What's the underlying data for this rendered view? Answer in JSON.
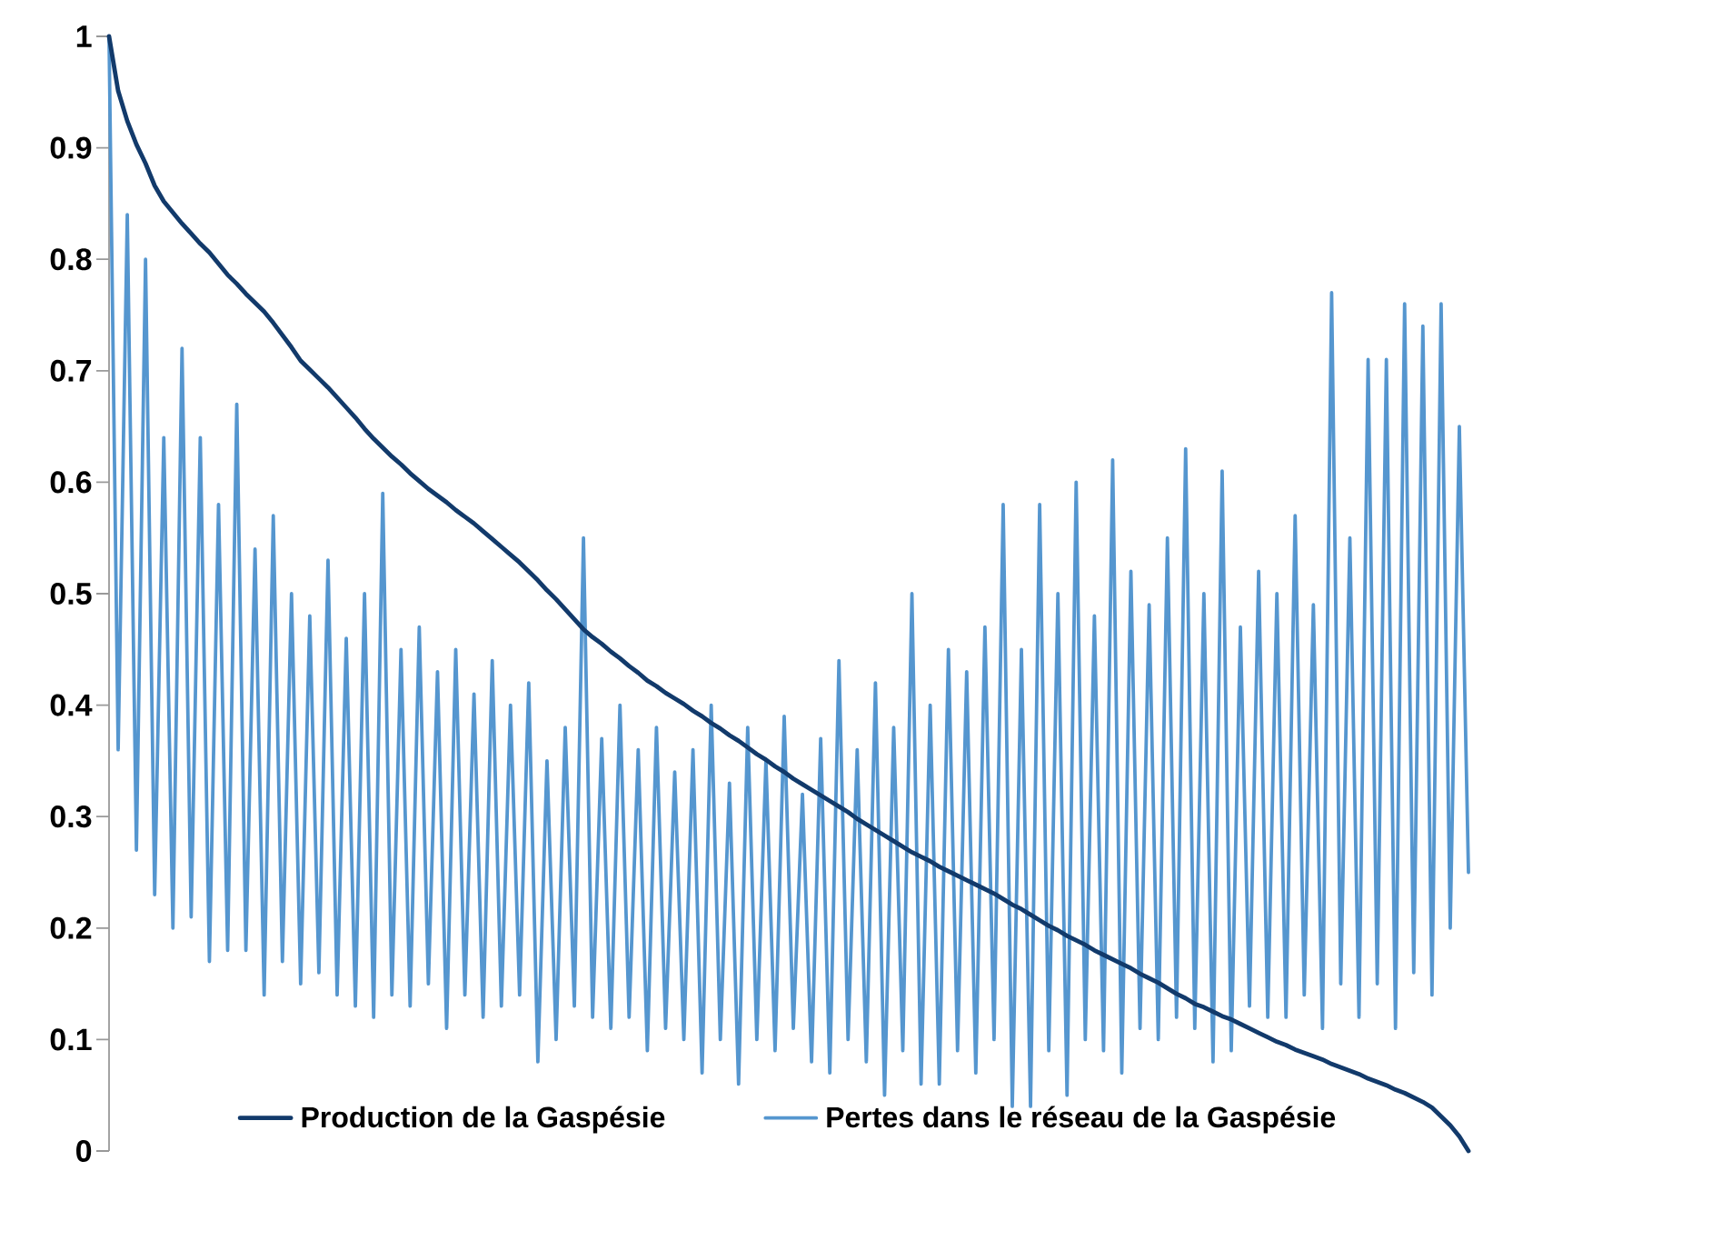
{
  "chart_data": {
    "type": "line",
    "categories": [
      null,
      null,
      null,
      null,
      null,
      null,
      null,
      null,
      null,
      null,
      null,
      null,
      null,
      null,
      null,
      null,
      null,
      null,
      null,
      null,
      null,
      null,
      null,
      null,
      null,
      null,
      null,
      null,
      null,
      null,
      null,
      null,
      null,
      null,
      null,
      null,
      null,
      null,
      null,
      null,
      null,
      null,
      null,
      null,
      null,
      null,
      null,
      null,
      null,
      null,
      null,
      null,
      null,
      null,
      null,
      null,
      null,
      null,
      null,
      null,
      null,
      null,
      null,
      null,
      null,
      null,
      null,
      null,
      null,
      null,
      null,
      null,
      null,
      null,
      null,
      null,
      null,
      null,
      null,
      null,
      null,
      null,
      null,
      null,
      null,
      null,
      null,
      null,
      null,
      null,
      null,
      null,
      null,
      null,
      null,
      null,
      null,
      null,
      null,
      null,
      null,
      null,
      null,
      null,
      null,
      null,
      null,
      null,
      null,
      null,
      null,
      null,
      null,
      null,
      null,
      null,
      null,
      null,
      null,
      null,
      null,
      null,
      null,
      null,
      null,
      null,
      null,
      null,
      null,
      null,
      null,
      null,
      null,
      null,
      null,
      null,
      null,
      null,
      null,
      null,
      null,
      null,
      null,
      null,
      null,
      null,
      null,
      null,
      null,
      null
    ],
    "series": [
      {
        "name": "Production de la Gaspésie",
        "color": "#123a6b",
        "values": [
          1.0,
          0.951,
          0.924,
          0.903,
          0.886,
          0.866,
          0.852,
          0.842,
          0.832,
          0.823,
          0.814,
          0.806,
          0.796,
          0.786,
          0.778,
          0.769,
          0.761,
          0.753,
          0.743,
          0.732,
          0.721,
          0.709,
          0.701,
          0.693,
          0.685,
          0.676,
          0.667,
          0.658,
          0.648,
          0.639,
          0.631,
          0.623,
          0.616,
          0.608,
          0.601,
          0.594,
          0.588,
          0.582,
          0.575,
          0.569,
          0.563,
          0.556,
          0.549,
          0.542,
          0.535,
          0.528,
          0.52,
          0.512,
          0.503,
          0.495,
          0.486,
          0.477,
          0.468,
          0.461,
          0.455,
          0.448,
          0.442,
          0.435,
          0.429,
          0.422,
          0.417,
          0.411,
          0.406,
          0.401,
          0.395,
          0.39,
          0.384,
          0.379,
          0.373,
          0.368,
          0.362,
          0.356,
          0.351,
          0.345,
          0.34,
          0.334,
          0.329,
          0.324,
          0.319,
          0.314,
          0.309,
          0.304,
          0.298,
          0.293,
          0.288,
          0.283,
          0.278,
          0.273,
          0.268,
          0.264,
          0.26,
          0.255,
          0.251,
          0.247,
          0.243,
          0.239,
          0.235,
          0.231,
          0.226,
          0.221,
          0.217,
          0.212,
          0.207,
          0.202,
          0.198,
          0.193,
          0.189,
          0.185,
          0.18,
          0.176,
          0.172,
          0.168,
          0.164,
          0.159,
          0.155,
          0.151,
          0.146,
          0.141,
          0.137,
          0.132,
          0.129,
          0.125,
          0.121,
          0.118,
          0.114,
          0.11,
          0.106,
          0.102,
          0.098,
          0.095,
          0.091,
          0.088,
          0.085,
          0.082,
          0.078,
          0.075,
          0.072,
          0.069,
          0.065,
          0.062,
          0.059,
          0.055,
          0.052,
          0.048,
          0.044,
          0.039,
          0.031,
          0.023,
          0.013,
          0.0
        ]
      },
      {
        "name": "Pertes dans le réseau de la Gaspésie",
        "color": "#5596cf",
        "values": [
          1.0,
          0.36,
          0.84,
          0.27,
          0.8,
          0.23,
          0.64,
          0.2,
          0.72,
          0.21,
          0.64,
          0.17,
          0.58,
          0.18,
          0.67,
          0.18,
          0.54,
          0.14,
          0.57,
          0.17,
          0.5,
          0.15,
          0.48,
          0.16,
          0.53,
          0.14,
          0.46,
          0.13,
          0.5,
          0.12,
          0.59,
          0.14,
          0.45,
          0.13,
          0.47,
          0.15,
          0.43,
          0.11,
          0.45,
          0.14,
          0.41,
          0.12,
          0.44,
          0.13,
          0.4,
          0.14,
          0.42,
          0.08,
          0.35,
          0.1,
          0.38,
          0.13,
          0.55,
          0.12,
          0.37,
          0.11,
          0.4,
          0.12,
          0.36,
          0.09,
          0.38,
          0.11,
          0.34,
          0.1,
          0.36,
          0.07,
          0.4,
          0.1,
          0.33,
          0.06,
          0.38,
          0.1,
          0.35,
          0.09,
          0.39,
          0.11,
          0.32,
          0.08,
          0.37,
          0.07,
          0.44,
          0.1,
          0.36,
          0.08,
          0.42,
          0.05,
          0.38,
          0.09,
          0.5,
          0.06,
          0.4,
          0.06,
          0.45,
          0.09,
          0.43,
          0.07,
          0.47,
          0.1,
          0.58,
          0.04,
          0.45,
          0.04,
          0.58,
          0.09,
          0.5,
          0.05,
          0.6,
          0.1,
          0.48,
          0.09,
          0.62,
          0.07,
          0.52,
          0.11,
          0.49,
          0.1,
          0.55,
          0.12,
          0.63,
          0.11,
          0.5,
          0.08,
          0.61,
          0.09,
          0.47,
          0.13,
          0.52,
          0.12,
          0.5,
          0.12,
          0.57,
          0.14,
          0.49,
          0.11,
          0.77,
          0.15,
          0.55,
          0.12,
          0.71,
          0.15,
          0.71,
          0.11,
          0.76,
          0.16,
          0.74,
          0.14,
          0.76,
          0.2,
          0.65,
          0.25
        ]
      }
    ],
    "ylim": [
      0,
      1
    ],
    "yticks": [
      0,
      0.1,
      0.2,
      0.3,
      0.4,
      0.5,
      0.6,
      0.7,
      0.8,
      0.9,
      1
    ],
    "legend": "bottom",
    "tick_labels": "y",
    "line_style": "solid"
  }
}
